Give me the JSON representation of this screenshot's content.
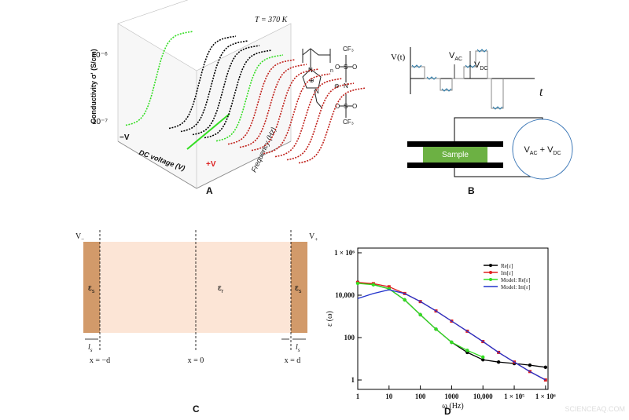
{
  "panel_a": {
    "label": "A",
    "temperature": "T = 370 K",
    "y_axis": "Conductivity σ' (S/cm)",
    "y_tick_top": "10⁻⁶",
    "y_tick_bottom": "10⁻⁷",
    "x_axis": "DC voltage (V)",
    "z_axis": "Frequency (Hz)",
    "neg_v": "−V",
    "pos_v": "+V",
    "structure": {
      "n": "n",
      "cf3_top": "CF₃",
      "cf3_bottom": "CF₃",
      "s1": "S",
      "s2": "S",
      "n_mid": "N",
      "o1": "O",
      "o2": "O",
      "o3": "O",
      "o4": "O",
      "n_ring1": "N",
      "n_ring2": "N",
      "plus": "⊕",
      "minus": "⊖"
    }
  },
  "panel_b": {
    "label": "B",
    "v_t": "V(t)",
    "t": "t",
    "v_ac": {
      "main": "V",
      "sub": "AC"
    },
    "v_dc": {
      "main": "V",
      "sub": "DC"
    },
    "sample": "Sample",
    "source": {
      "v1": "V",
      "s1": "AC",
      "plus": " + ",
      "v2": "V",
      "s2": "DC"
    }
  },
  "panel_c": {
    "label": "C",
    "v_minus": {
      "main": "V",
      "sub": "−"
    },
    "v_plus": {
      "main": "V",
      "sub": "+"
    },
    "eps_left": {
      "main": "ε",
      "sub": "s"
    },
    "eps_mid": {
      "main": "ε",
      "sub": "r"
    },
    "eps_right": {
      "main": "ε",
      "sub": "s"
    },
    "ls_left": {
      "main": "l",
      "sub": "s"
    },
    "ls_right": {
      "main": "l",
      "sub": "s"
    },
    "x_left": "x = −d",
    "x_mid": "x = 0",
    "x_right": "x = d"
  },
  "chart_data": {
    "type": "line",
    "panel_label": "D",
    "x_label": "ω (Hz)",
    "y_label": "ε (ω)",
    "log_x": true,
    "log_y": true,
    "x": [
      1,
      3.16,
      10,
      31.6,
      100,
      316,
      1000,
      3162,
      10000,
      31623,
      100000,
      316228,
      1000000
    ],
    "xlim": [
      1,
      1200000
    ],
    "ylim": [
      0.36,
      1670000
    ],
    "xticks": [
      1,
      10,
      100,
      1000,
      {
        "value": 10000,
        "label": "10,000"
      },
      {
        "value": 100000,
        "label": "1 × 10⁵"
      },
      {
        "value": 1000000,
        "label": "1 × 10⁶"
      }
    ],
    "yticks": [
      1,
      100,
      {
        "value": 10000,
        "label": "10,000"
      },
      {
        "value": 1000000,
        "label": "1 × 10⁶"
      }
    ],
    "legend": "upper right",
    "series": [
      {
        "name": "Re[ε]",
        "color": "#000000",
        "marker": "circle",
        "values": [
          40000,
          32000,
          20000,
          6000,
          1200,
          250,
          60,
          20,
          9,
          7,
          6,
          5,
          4
        ]
      },
      {
        "name": "Im[ε]",
        "color": "#e02020",
        "marker": "square",
        "values": [
          40000,
          35000,
          25000,
          12000,
          5000,
          1800,
          600,
          200,
          65,
          20,
          7,
          2.5,
          1
        ]
      },
      {
        "name": "Model: Re[ε]",
        "color": "#33dd22",
        "marker": "circle",
        "values": [
          36000,
          31000,
          20000,
          6000,
          1200,
          250,
          60,
          25,
          12,
          null,
          null,
          null,
          null
        ]
      },
      {
        "name": "Model: Im[ε]",
        "color": "#2233cc",
        "marker": null,
        "values": [
          7000,
          12000,
          18000,
          12000,
          5000,
          1800,
          600,
          200,
          65,
          20,
          7,
          2.5,
          1
        ]
      }
    ]
  },
  "watermark": "SCIENCEAQ.COM"
}
